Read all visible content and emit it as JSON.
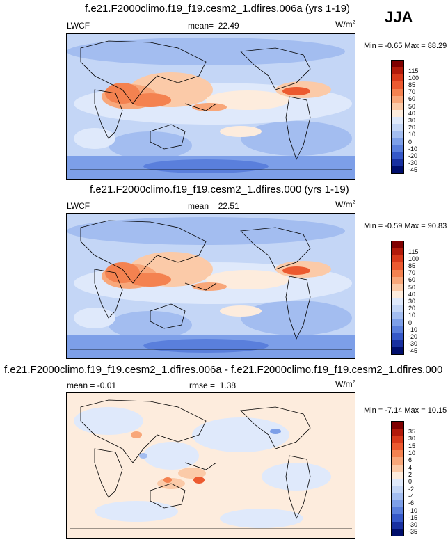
{
  "season": "JJA",
  "panels": [
    {
      "title": "f.e21.F2000climo.f19_f19.cesm2_1.dfires.006a (yrs 1-19)",
      "left_label": "LWCF",
      "stat_label": "mean=",
      "stat_value": "22.49",
      "units": "W/m",
      "units_sup": "2",
      "minmax": "Min = -0.65 Max = 88.29",
      "ticks": [
        "115",
        "100",
        "85",
        "70",
        "60",
        "50",
        "40",
        "30",
        "20",
        "10",
        "0",
        "-10",
        "-20",
        "-30",
        "-45"
      ]
    },
    {
      "title": "f.e21.F2000climo.f19_f19.cesm2_1.dfires.000 (yrs 1-19)",
      "left_label": "LWCF",
      "stat_label": "mean=",
      "stat_value": "22.51",
      "units": "W/m",
      "units_sup": "2",
      "minmax": "Min = -0.59 Max = 90.83",
      "ticks": [
        "115",
        "100",
        "85",
        "70",
        "60",
        "50",
        "40",
        "30",
        "20",
        "10",
        "0",
        "-10",
        "-20",
        "-30",
        "-45"
      ]
    },
    {
      "title": "f.e21.F2000climo.f19_f19.cesm2_1.dfires.006a - f.e21.F2000climo.f19_f19.cesm2_1.dfires.000",
      "left_label": "mean = -0.01",
      "stat_label": "rmse =",
      "stat_value": "1.38",
      "units": "W/m",
      "units_sup": "2",
      "minmax": "Min = -7.14 Max = 10.15",
      "ticks": [
        "35",
        "30",
        "15",
        "10",
        "6",
        "4",
        "2",
        "0",
        "-2",
        "-4",
        "-6",
        "-10",
        "-15",
        "-30",
        "-35"
      ]
    }
  ],
  "colors": {
    "abs_scale": [
      "#7f0000",
      "#b21a0a",
      "#d8391a",
      "#ec5a30",
      "#f48250",
      "#f8a77a",
      "#fbcaa8",
      "#fdecdd",
      "#dfe9fb",
      "#c4d6f6",
      "#a3bdf0",
      "#7d9fe8",
      "#5a7fdc",
      "#3558c8",
      "#1830a0",
      "#000e6c"
    ],
    "diff_scale": [
      "#7f0000",
      "#b21a0a",
      "#d8391a",
      "#ec5a30",
      "#f48250",
      "#f8a77a",
      "#fbcaa8",
      "#fdecdd",
      "#dfe9fb",
      "#c4d6f6",
      "#a3bdf0",
      "#7d9fe8",
      "#5a7fdc",
      "#3558c8",
      "#1830a0",
      "#000e6c"
    ]
  }
}
